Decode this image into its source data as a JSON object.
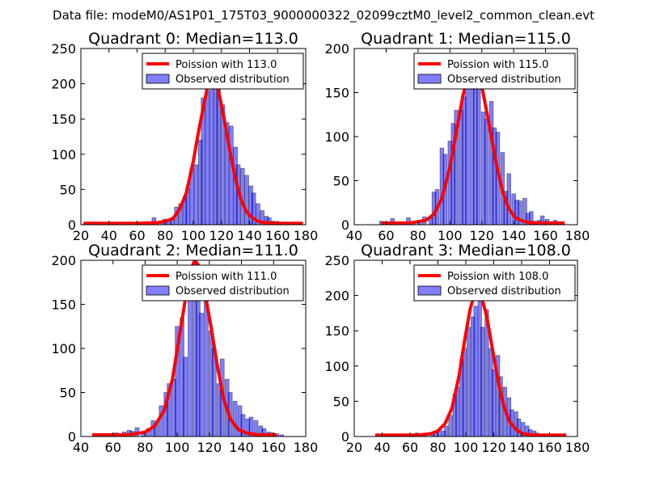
{
  "figure": {
    "suptitle": "Data file: modeM0/AS1P01_175T03_9000000322_02099cztM0_level2_common_clean.evt"
  },
  "chart_data": [
    {
      "type": "bar",
      "title": "Quadrant 0: Median=113.0",
      "xlim": [
        20,
        180
      ],
      "ylim": [
        0,
        250
      ],
      "xticks": [
        "20",
        "40",
        "60",
        "80",
        "100",
        "120",
        "140",
        "160",
        "180"
      ],
      "yticks": [
        "0",
        "50",
        "100",
        "150",
        "200",
        "250"
      ],
      "median": 113.0,
      "legend": {
        "line": "Poission with 113.0",
        "bars": "Observed distribution"
      },
      "bin_width": 2.8,
      "bins": [
        [
          23,
          2
        ],
        [
          28,
          1
        ],
        [
          33,
          1
        ],
        [
          39,
          1
        ],
        [
          44,
          1
        ],
        [
          50,
          1
        ],
        [
          55,
          1
        ],
        [
          61,
          1
        ],
        [
          66,
          2
        ],
        [
          72,
          10
        ],
        [
          77,
          5
        ],
        [
          80,
          8
        ],
        [
          83,
          8
        ],
        [
          85,
          10
        ],
        [
          88,
          25
        ],
        [
          91,
          30
        ],
        [
          94,
          40
        ],
        [
          96,
          52
        ],
        [
          99,
          80
        ],
        [
          102,
          85
        ],
        [
          105,
          120
        ],
        [
          107,
          180
        ],
        [
          110,
          190
        ],
        [
          113,
          200
        ],
        [
          116,
          210
        ],
        [
          118,
          200
        ],
        [
          121,
          170
        ],
        [
          124,
          145
        ],
        [
          127,
          140
        ],
        [
          130,
          110
        ],
        [
          132,
          85
        ],
        [
          135,
          80
        ],
        [
          138,
          70
        ],
        [
          141,
          55
        ],
        [
          143,
          45
        ],
        [
          146,
          30
        ],
        [
          149,
          20
        ],
        [
          152,
          12
        ],
        [
          154,
          10
        ],
        [
          157,
          5
        ],
        [
          160,
          4
        ],
        [
          163,
          3
        ],
        [
          165,
          2
        ]
      ],
      "poisson": [
        [
          22,
          2
        ],
        [
          40,
          2
        ],
        [
          60,
          2
        ],
        [
          75,
          3
        ],
        [
          80,
          5
        ],
        [
          85,
          8
        ],
        [
          88,
          15
        ],
        [
          91,
          25
        ],
        [
          95,
          45
        ],
        [
          100,
          90
        ],
        [
          104,
          135
        ],
        [
          108,
          175
        ],
        [
          111,
          205
        ],
        [
          113,
          211
        ],
        [
          116,
          205
        ],
        [
          119,
          180
        ],
        [
          122,
          150
        ],
        [
          126,
          105
        ],
        [
          130,
          65
        ],
        [
          134,
          35
        ],
        [
          138,
          18
        ],
        [
          142,
          10
        ],
        [
          146,
          5
        ],
        [
          150,
          3
        ],
        [
          160,
          2
        ],
        [
          178,
          2
        ]
      ]
    },
    {
      "type": "bar",
      "title": "Quadrant 1: Median=115.0",
      "xlim": [
        40,
        180
      ],
      "ylim": [
        0,
        200
      ],
      "xticks": [
        "40",
        "60",
        "80",
        "100",
        "120",
        "140",
        "160",
        "180"
      ],
      "yticks": [
        "0",
        "50",
        "100",
        "150",
        "200"
      ],
      "median": 115.0,
      "legend": {
        "line": "Poission with 115.0",
        "bars": "Observed distribution"
      },
      "bin_width": 2.4,
      "bins": [
        [
          57,
          4
        ],
        [
          62,
          2
        ],
        [
          64,
          7
        ],
        [
          69,
          2
        ],
        [
          74,
          8
        ],
        [
          77,
          4
        ],
        [
          81,
          3
        ],
        [
          84,
          9
        ],
        [
          88,
          8
        ],
        [
          90,
          37
        ],
        [
          92,
          40
        ],
        [
          95,
          87
        ],
        [
          97,
          80
        ],
        [
          100,
          95
        ],
        [
          102,
          115
        ],
        [
          104,
          130
        ],
        [
          107,
          130
        ],
        [
          109,
          145
        ],
        [
          111,
          167
        ],
        [
          114,
          180
        ],
        [
          116,
          170
        ],
        [
          118,
          160
        ],
        [
          121,
          128
        ],
        [
          123,
          120
        ],
        [
          126,
          140
        ],
        [
          128,
          110
        ],
        [
          130,
          105
        ],
        [
          133,
          82
        ],
        [
          135,
          38
        ],
        [
          137,
          58
        ],
        [
          140,
          35
        ],
        [
          142,
          28
        ],
        [
          144,
          27
        ],
        [
          147,
          30
        ],
        [
          149,
          13
        ],
        [
          151,
          15
        ],
        [
          153,
          4
        ],
        [
          156,
          5
        ],
        [
          158,
          10
        ],
        [
          161,
          6
        ],
        [
          163,
          3
        ],
        [
          166,
          5
        ],
        [
          169,
          3
        ]
      ],
      "poisson": [
        [
          57,
          2
        ],
        [
          75,
          2
        ],
        [
          85,
          5
        ],
        [
          90,
          12
        ],
        [
          95,
          30
        ],
        [
          100,
          65
        ],
        [
          104,
          105
        ],
        [
          108,
          145
        ],
        [
          112,
          175
        ],
        [
          115,
          183
        ],
        [
          118,
          175
        ],
        [
          121,
          148
        ],
        [
          125,
          110
        ],
        [
          129,
          70
        ],
        [
          133,
          38
        ],
        [
          137,
          18
        ],
        [
          141,
          8
        ],
        [
          146,
          4
        ],
        [
          152,
          2
        ],
        [
          172,
          2
        ]
      ]
    },
    {
      "type": "bar",
      "title": "Quadrant 2: Median=111.0",
      "xlim": [
        40,
        180
      ],
      "ylim": [
        0,
        200
      ],
      "xticks": [
        "40",
        "60",
        "80",
        "100",
        "120",
        "140",
        "160",
        "180"
      ],
      "yticks": [
        "0",
        "50",
        "100",
        "150",
        "200"
      ],
      "median": 111.0,
      "legend": {
        "line": "Poission with 111.0",
        "bars": "Observed distribution"
      },
      "bin_width": 2.5,
      "bins": [
        [
          49,
          2
        ],
        [
          55,
          1
        ],
        [
          59,
          3
        ],
        [
          62,
          4
        ],
        [
          67,
          5
        ],
        [
          70,
          7
        ],
        [
          72,
          6
        ],
        [
          75,
          10
        ],
        [
          79,
          5
        ],
        [
          82,
          9
        ],
        [
          85,
          18
        ],
        [
          87,
          15
        ],
        [
          90,
          35
        ],
        [
          93,
          50
        ],
        [
          95,
          60
        ],
        [
          98,
          65
        ],
        [
          100,
          125
        ],
        [
          103,
          135
        ],
        [
          105,
          90
        ],
        [
          108,
          190
        ],
        [
          111,
          200
        ],
        [
          113,
          185
        ],
        [
          115,
          140
        ],
        [
          118,
          165
        ],
        [
          121,
          120
        ],
        [
          123,
          100
        ],
        [
          126,
          60
        ],
        [
          128,
          88
        ],
        [
          131,
          65
        ],
        [
          133,
          50
        ],
        [
          136,
          40
        ],
        [
          139,
          35
        ],
        [
          141,
          25
        ],
        [
          144,
          20
        ],
        [
          146,
          22
        ],
        [
          149,
          18
        ],
        [
          152,
          12
        ],
        [
          154,
          9
        ],
        [
          157,
          5
        ],
        [
          159,
          4
        ],
        [
          162,
          3
        ],
        [
          165,
          2
        ]
      ],
      "poisson": [
        [
          47,
          2
        ],
        [
          70,
          2
        ],
        [
          80,
          5
        ],
        [
          86,
          12
        ],
        [
          92,
          30
        ],
        [
          97,
          65
        ],
        [
          101,
          110
        ],
        [
          105,
          155
        ],
        [
          109,
          192
        ],
        [
          111,
          200
        ],
        [
          113,
          195
        ],
        [
          117,
          165
        ],
        [
          121,
          125
        ],
        [
          125,
          80
        ],
        [
          129,
          42
        ],
        [
          133,
          20
        ],
        [
          138,
          8
        ],
        [
          143,
          4
        ],
        [
          150,
          2
        ],
        [
          162,
          2
        ]
      ]
    },
    {
      "type": "bar",
      "title": "Quadrant 3: Median=108.0",
      "xlim": [
        20,
        180
      ],
      "ylim": [
        0,
        250
      ],
      "xticks": [
        "20",
        "40",
        "60",
        "80",
        "100",
        "120",
        "140",
        "160",
        "180"
      ],
      "yticks": [
        "0",
        "50",
        "100",
        "150",
        "200",
        "250"
      ],
      "median": 108.0,
      "legend": {
        "line": "Poission with 108.0",
        "bars": "Observed distribution"
      },
      "bin_width": 2.6,
      "bins": [
        [
          52,
          2
        ],
        [
          55,
          1
        ],
        [
          57,
          3
        ],
        [
          62,
          3
        ],
        [
          65,
          5
        ],
        [
          71,
          4
        ],
        [
          76,
          6
        ],
        [
          78,
          5
        ],
        [
          81,
          9
        ],
        [
          84,
          8
        ],
        [
          86,
          15
        ],
        [
          89,
          30
        ],
        [
          92,
          60
        ],
        [
          94,
          70
        ],
        [
          97,
          110
        ],
        [
          99,
          125
        ],
        [
          102,
          155
        ],
        [
          105,
          170
        ],
        [
          107,
          185
        ],
        [
          110,
          210
        ],
        [
          112,
          155
        ],
        [
          115,
          180
        ],
        [
          118,
          125
        ],
        [
          120,
          95
        ],
        [
          123,
          115
        ],
        [
          125,
          85
        ],
        [
          128,
          70
        ],
        [
          131,
          55
        ],
        [
          133,
          38
        ],
        [
          136,
          35
        ],
        [
          138,
          25
        ],
        [
          141,
          20
        ],
        [
          144,
          15
        ],
        [
          146,
          10
        ],
        [
          149,
          8
        ],
        [
          151,
          5
        ],
        [
          154,
          3
        ],
        [
          160,
          3
        ],
        [
          165,
          2
        ],
        [
          170,
          3
        ]
      ],
      "poisson": [
        [
          35,
          2
        ],
        [
          65,
          2
        ],
        [
          75,
          4
        ],
        [
          80,
          8
        ],
        [
          85,
          18
        ],
        [
          90,
          40
        ],
        [
          95,
          85
        ],
        [
          99,
          135
        ],
        [
          103,
          180
        ],
        [
          107,
          208
        ],
        [
          108,
          210
        ],
        [
          111,
          200
        ],
        [
          115,
          170
        ],
        [
          119,
          125
        ],
        [
          123,
          80
        ],
        [
          127,
          45
        ],
        [
          131,
          22
        ],
        [
          136,
          10
        ],
        [
          141,
          4
        ],
        [
          148,
          2
        ],
        [
          172,
          2
        ]
      ]
    }
  ]
}
